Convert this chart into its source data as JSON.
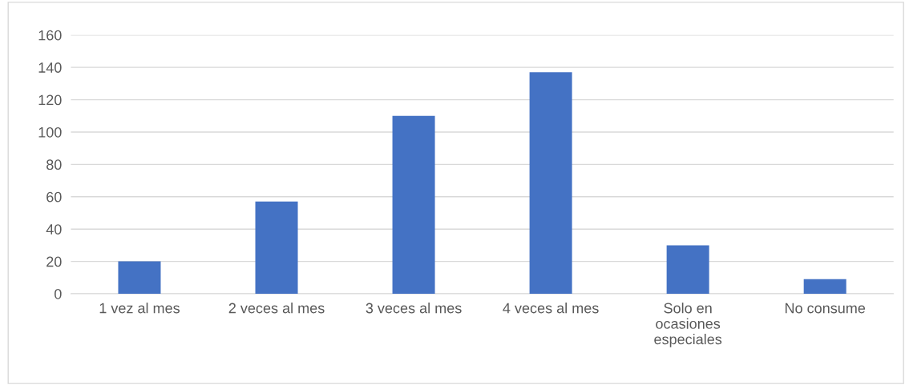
{
  "chart_data": {
    "type": "bar",
    "categories": [
      "1 vez al mes",
      "2 veces al mes",
      "3 veces al mes",
      "4 veces al mes",
      "Solo en\nocasiones\nespeciales",
      "No consume"
    ],
    "values": [
      20,
      57,
      110,
      137,
      30,
      9
    ],
    "color": "#4472c4",
    "ylim": [
      0,
      160
    ],
    "yticks": [
      0,
      20,
      40,
      60,
      80,
      100,
      120,
      140,
      160
    ],
    "grid": "y"
  }
}
